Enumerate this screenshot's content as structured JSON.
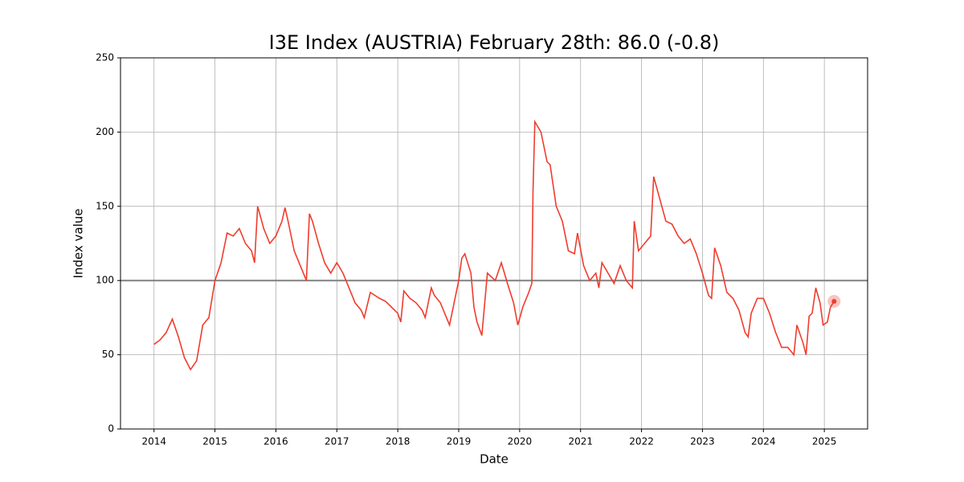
{
  "chart_data": {
    "type": "line",
    "title": "I3E Index (AUSTRIA) February 28th: 86.0 (-0.8)",
    "xlabel": "Date",
    "ylabel": "Index value",
    "x": [
      2014.0,
      2014.1,
      2014.2,
      2014.3,
      2014.4,
      2014.5,
      2014.6,
      2014.7,
      2014.8,
      2014.9,
      2015.0,
      2015.1,
      2015.2,
      2015.3,
      2015.4,
      2015.5,
      2015.6,
      2015.65,
      2015.7,
      2015.8,
      2015.9,
      2016.0,
      2016.1,
      2016.15,
      2016.2,
      2016.3,
      2016.4,
      2016.5,
      2016.55,
      2016.6,
      2016.7,
      2016.8,
      2016.9,
      2017.0,
      2017.1,
      2017.2,
      2017.3,
      2017.4,
      2017.45,
      2017.55,
      2017.7,
      2017.8,
      2018.0,
      2018.05,
      2018.1,
      2018.2,
      2018.3,
      2018.4,
      2018.45,
      2018.55,
      2018.6,
      2018.7,
      2018.8,
      2018.85,
      2019.0,
      2019.05,
      2019.1,
      2019.2,
      2019.25,
      2019.3,
      2019.38,
      2019.47,
      2019.6,
      2019.7,
      2019.8,
      2019.9,
      2019.97,
      2020.05,
      2020.15,
      2020.2,
      2020.22,
      2020.25,
      2020.35,
      2020.45,
      2020.5,
      2020.6,
      2020.7,
      2020.8,
      2020.9,
      2020.95,
      2021.05,
      2021.15,
      2021.25,
      2021.3,
      2021.35,
      2021.45,
      2021.55,
      2021.65,
      2021.75,
      2021.85,
      2021.88,
      2021.95,
      2022.05,
      2022.15,
      2022.2,
      2022.3,
      2022.4,
      2022.5,
      2022.6,
      2022.7,
      2022.8,
      2022.9,
      2023.0,
      2023.1,
      2023.15,
      2023.2,
      2023.3,
      2023.4,
      2023.5,
      2023.6,
      2023.7,
      2023.75,
      2023.8,
      2023.9,
      2024.0,
      2024.1,
      2024.2,
      2024.3,
      2024.4,
      2024.5,
      2024.55,
      2024.65,
      2024.7,
      2024.75,
      2024.8,
      2024.86,
      2024.93,
      2024.98,
      2025.05,
      2025.1,
      2025.16
    ],
    "series": [
      {
        "name": "I3E Index",
        "color": "#f03c2e",
        "values": [
          57,
          60,
          65,
          74,
          62,
          48,
          40,
          46,
          70,
          75,
          100,
          112,
          132,
          130,
          135,
          125,
          120,
          112,
          150,
          135,
          125,
          130,
          140,
          149,
          140,
          120,
          110,
          100,
          145,
          140,
          125,
          112,
          105,
          112,
          105,
          95,
          85,
          80,
          75,
          92,
          88,
          86,
          78,
          72,
          93,
          88,
          85,
          80,
          75,
          95,
          90,
          85,
          75,
          70,
          100,
          115,
          118,
          105,
          82,
          72,
          63,
          105,
          100,
          112,
          98,
          85,
          70,
          82,
          92,
          98,
          160,
          207,
          200,
          180,
          178,
          150,
          140,
          120,
          118,
          132,
          110,
          100,
          105,
          95,
          112,
          105,
          98,
          110,
          100,
          95,
          140,
          120,
          125,
          130,
          170,
          155,
          140,
          138,
          130,
          125,
          128,
          118,
          105,
          90,
          88,
          122,
          110,
          92,
          88,
          80,
          65,
          62,
          78,
          88,
          88,
          78,
          65,
          55,
          55,
          50,
          70,
          58,
          50,
          76,
          78,
          95,
          85,
          70,
          72,
          82,
          86
        ]
      }
    ],
    "xlim": [
      2013.45,
      2025.71
    ],
    "xticks": [
      2014,
      2015,
      2016,
      2017,
      2018,
      2019,
      2020,
      2021,
      2022,
      2023,
      2024,
      2025
    ],
    "ylim": [
      0,
      250
    ],
    "yticks": [
      0,
      50,
      100,
      150,
      200,
      250
    ],
    "hline": 100,
    "grid": true
  }
}
